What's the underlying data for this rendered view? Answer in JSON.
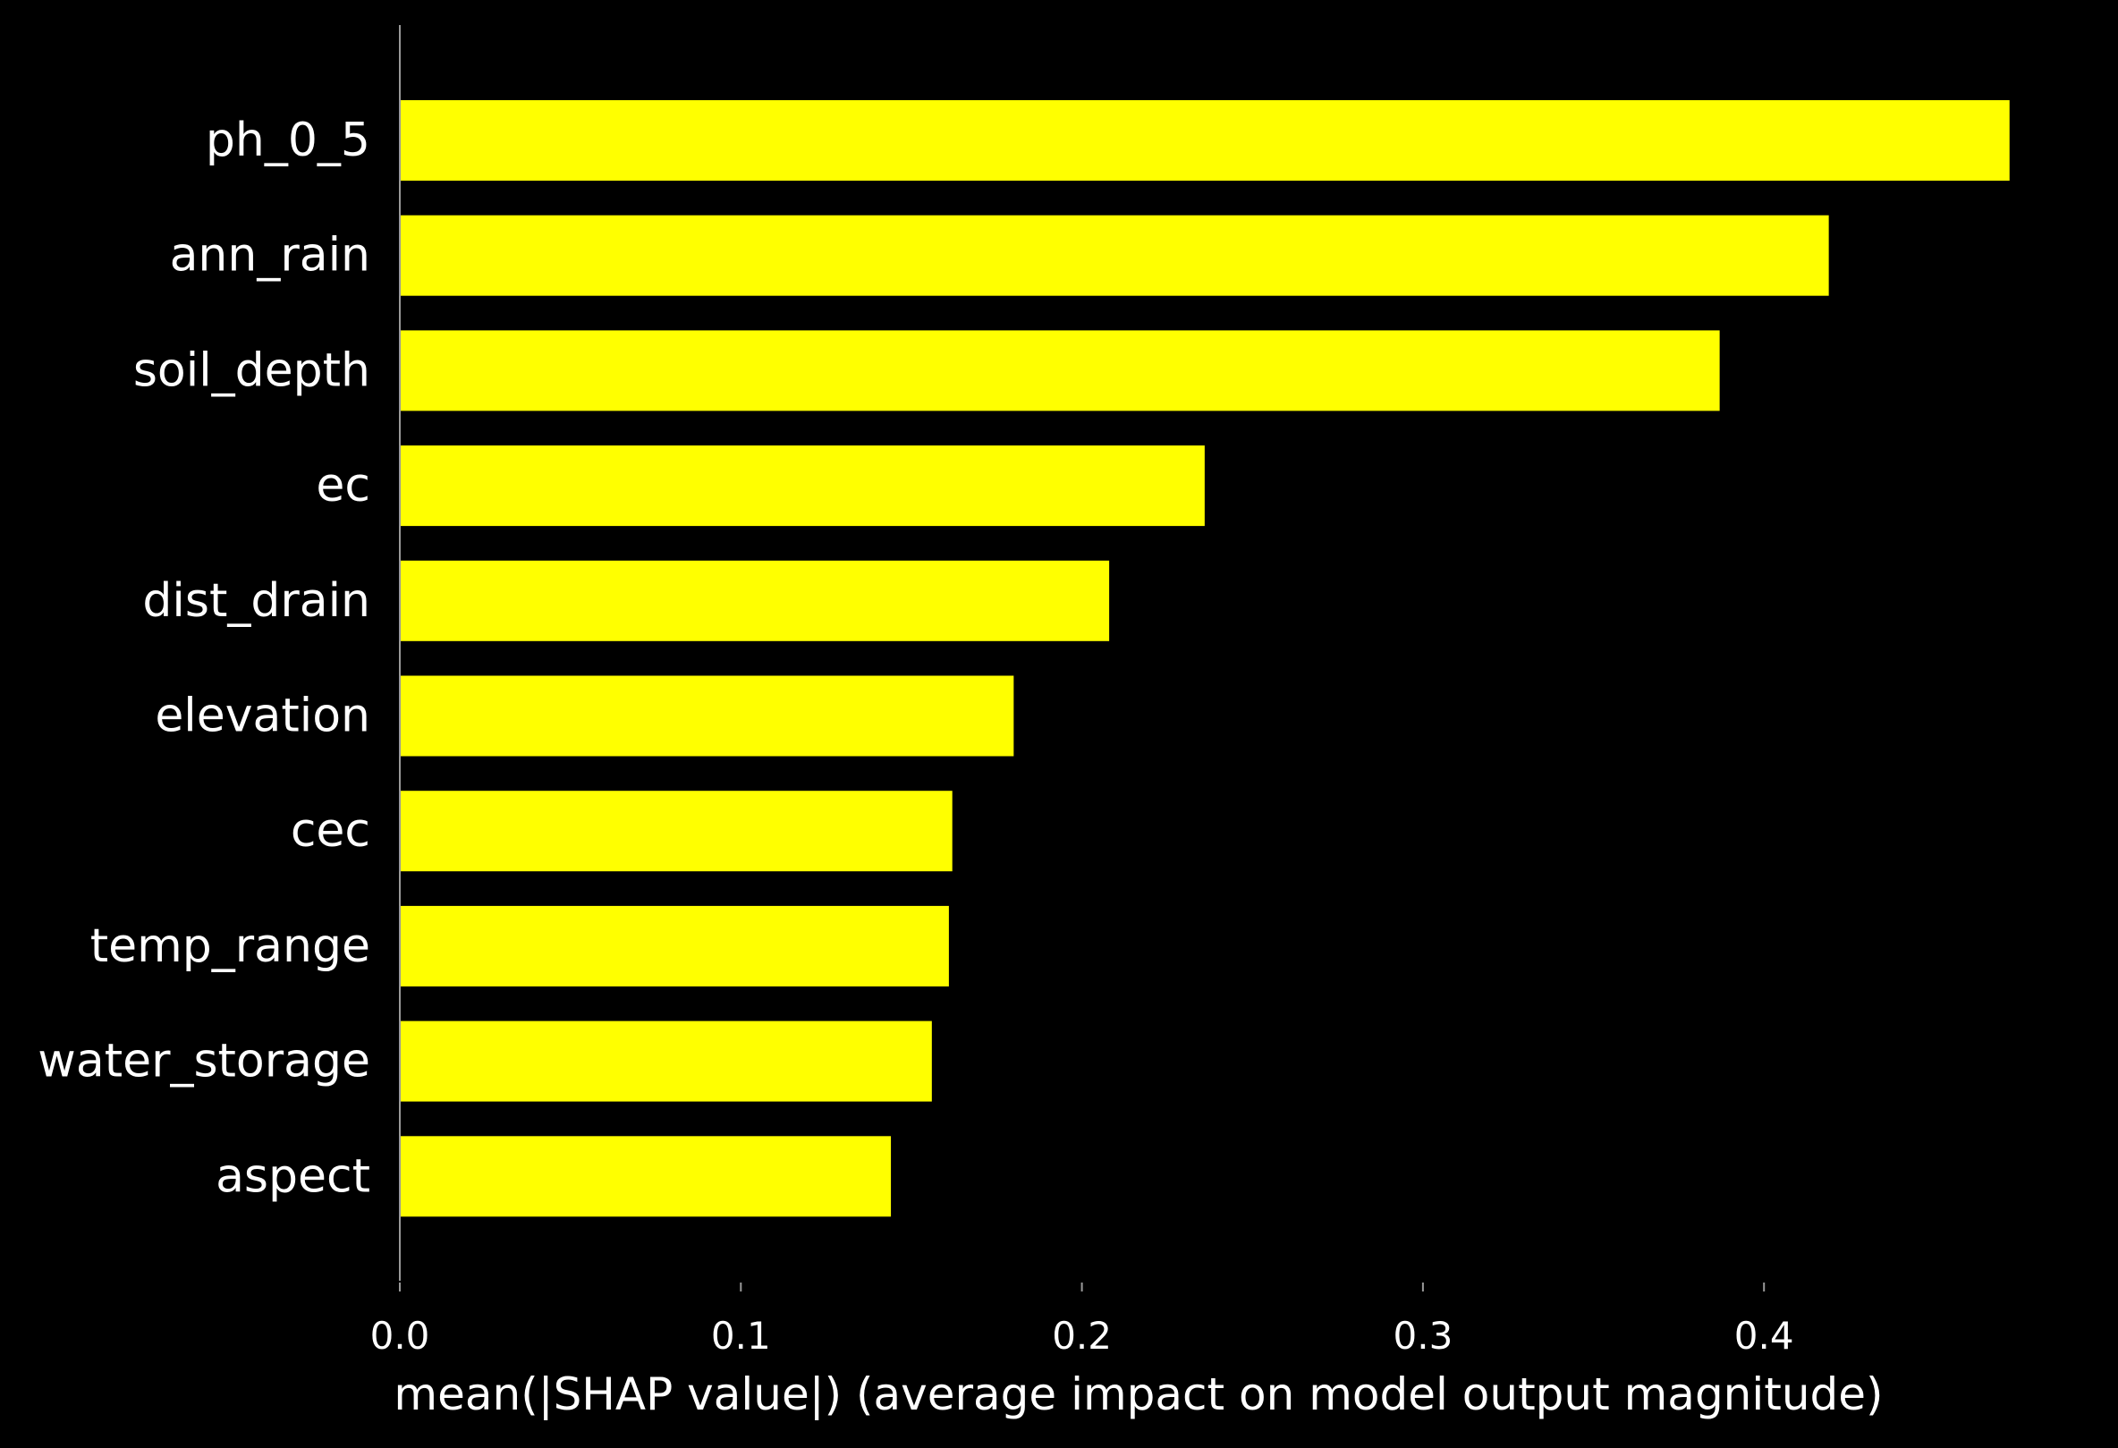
{
  "chart_data": {
    "type": "bar",
    "orientation": "horizontal",
    "categories": [
      "ph_0_5",
      "ann_rain",
      "soil_depth",
      "ec",
      "dist_drain",
      "elevation",
      "cec",
      "temp_range",
      "water_storage",
      "aspect"
    ],
    "values": [
      0.472,
      0.419,
      0.387,
      0.236,
      0.208,
      0.18,
      0.162,
      0.161,
      0.156,
      0.144
    ],
    "xlabel": "mean(|SHAP value|) (average impact on model output magnitude)",
    "ylabel": "",
    "xticks": [
      0.0,
      0.1,
      0.2,
      0.3,
      0.4
    ],
    "xtick_labels": [
      "0.0",
      "0.1",
      "0.2",
      "0.3",
      "0.4"
    ],
    "xlim": [
      0.0,
      0.472
    ],
    "bar_color": "#ffff00",
    "background_color": "#000000",
    "text_color": "#ffffff",
    "axis_color": "#999999",
    "grid": false,
    "legend": "none"
  }
}
